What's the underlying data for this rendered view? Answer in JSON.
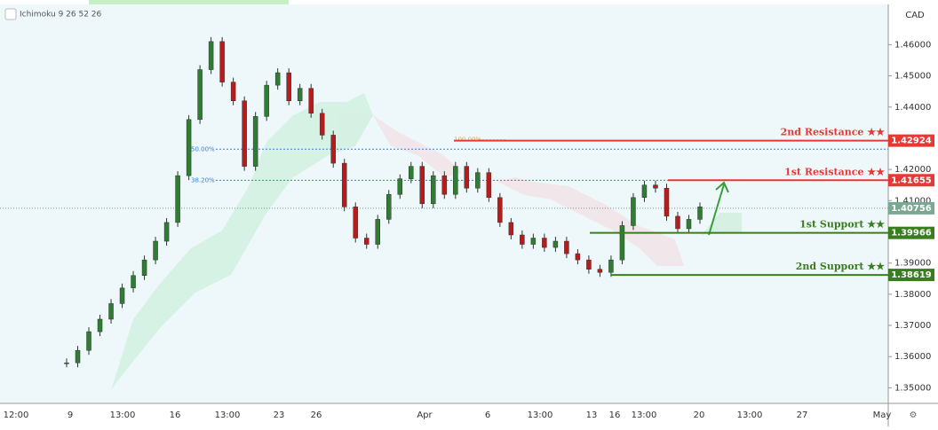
{
  "indicator": "Ichimoku 9 26 52 26",
  "currency": "CAD",
  "price_axis": {
    "ylim": [
      1.345,
      1.4729
    ],
    "ticks": [
      {
        "value": 1.46,
        "label": "1.46000"
      },
      {
        "value": 1.45,
        "label": "1.45000"
      },
      {
        "value": 1.44,
        "label": "1.44000"
      },
      {
        "value": 1.43,
        "label": "1.43000"
      },
      {
        "value": 1.42,
        "label": "1.42000"
      },
      {
        "value": 1.41,
        "label": "1.41000"
      },
      {
        "value": 1.4,
        "label": "1.40000"
      },
      {
        "value": 1.39,
        "label": "1.39000"
      },
      {
        "value": 1.38,
        "label": "1.38000"
      },
      {
        "value": 1.37,
        "label": "1.37000"
      },
      {
        "value": 1.36,
        "label": "1.36000"
      },
      {
        "value": 1.35,
        "label": "1.35000"
      }
    ]
  },
  "time_axis": [
    "12:00",
    "9",
    "13:00",
    "16",
    "13:00",
    "23",
    "26",
    "Apr",
    "6",
    "13:00",
    "13",
    "16",
    "13:00",
    "20",
    "13:00",
    "27",
    "May"
  ],
  "price_series": [
    1.358,
    1.362,
    1.368,
    1.372,
    1.377,
    1.382,
    1.386,
    1.391,
    1.397,
    1.403,
    1.418,
    1.436,
    1.452,
    1.461,
    1.448,
    1.442,
    1.421,
    1.437,
    1.447,
    1.451,
    1.442,
    1.446,
    1.438,
    1.431,
    1.422,
    1.408,
    1.398,
    1.396,
    1.404,
    1.412,
    1.417,
    1.421,
    1.409,
    1.418,
    1.412,
    1.421,
    1.414,
    1.419,
    1.411,
    1.403,
    1.399,
    1.396,
    1.398,
    1.395,
    1.397,
    1.393,
    1.391,
    1.388,
    1.387,
    1.391,
    1.402,
    1.411,
    1.415,
    1.414,
    1.405,
    1.401,
    1.404,
    1.408
  ],
  "fib": [
    {
      "value": 1.4265,
      "label": "50.00%"
    },
    {
      "value": 1.4165,
      "label": "38.20%"
    },
    {
      "value": 1.4295,
      "label": "100.00%"
    }
  ],
  "levels": [
    {
      "name": "2nd Resistance ★★",
      "value": 1.42924,
      "label": "1.42924",
      "color": "#e53935"
    },
    {
      "name": "1st Resistance ★★",
      "value": 1.41655,
      "label": "1.41655",
      "color": "#e53935"
    },
    {
      "name": "1st Support ★★",
      "value": 1.39966,
      "label": "1.39966",
      "color": "#3a7d1e"
    },
    {
      "name": "2nd Support ★★",
      "value": 1.38619,
      "label": "1.38619",
      "color": "#3a7d1e"
    }
  ],
  "last_price": {
    "value": 1.40756,
    "label": "1.40756"
  }
}
